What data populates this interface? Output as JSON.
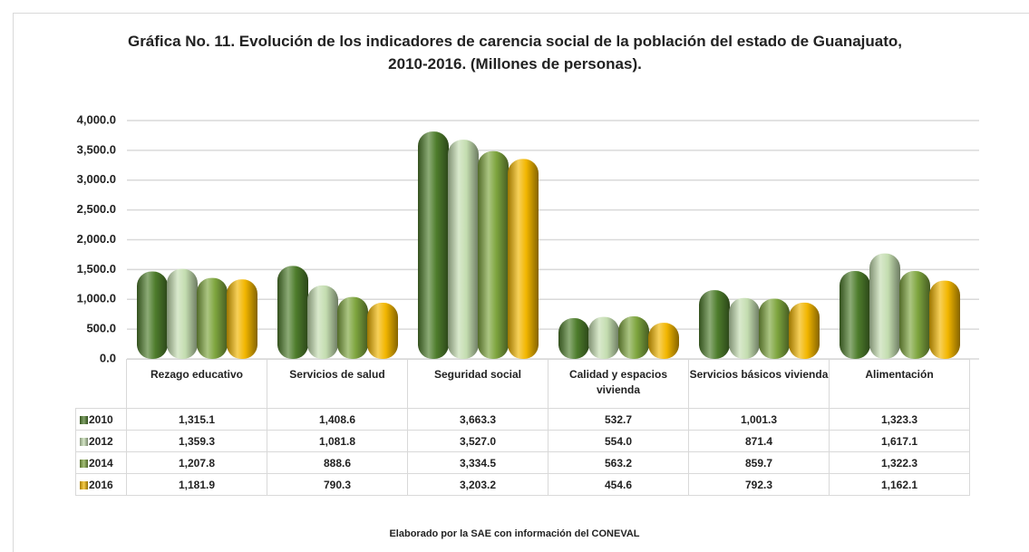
{
  "chart_data": {
    "type": "bar",
    "title": "Gráfica No. 11. Evolución de los indicadores de carencia social de la población del estado de Guanajuato, 2010-2016. (Millones de personas).",
    "source": "Elaborado por la SAE con información del CONEVAL",
    "categories": [
      "Rezago educativo",
      "Servicios de salud",
      "Seguridad social",
      "Calidad y espacios vivienda",
      "Servicios básicos vivienda",
      "Alimentación"
    ],
    "series": [
      {
        "name": "2010",
        "color": "#4e7d2c",
        "values": [
          1315.1,
          1408.6,
          3663.3,
          532.7,
          1001.3,
          1323.3
        ],
        "value_labels": [
          "1,315.1",
          "1,408.6",
          "3,663.3",
          "532.7",
          "1,001.3",
          "1,323.3"
        ]
      },
      {
        "name": "2012",
        "color": "#c4ddb0",
        "values": [
          1359.3,
          1081.8,
          3527.0,
          554.0,
          871.4,
          1617.1
        ],
        "value_labels": [
          "1,359.3",
          "1,081.8",
          "3,527.0",
          "554.0",
          "871.4",
          "1,617.1"
        ]
      },
      {
        "name": "2014",
        "color": "#7ea53e",
        "values": [
          1207.8,
          888.6,
          3334.5,
          563.2,
          859.7,
          1322.3
        ],
        "value_labels": [
          "1,207.8",
          "888.6",
          "3,334.5",
          "563.2",
          "859.7",
          "1,322.3"
        ]
      },
      {
        "name": "2016",
        "color": "#f2b600",
        "values": [
          1181.9,
          790.3,
          3203.2,
          454.6,
          792.3,
          1162.1
        ],
        "value_labels": [
          "1,181.9",
          "790.3",
          "3,203.2",
          "454.6",
          "792.3",
          "1,162.1"
        ]
      }
    ],
    "ylim": [
      0,
      4000
    ],
    "yticks": [
      {
        "value": 0,
        "label": "0.0"
      },
      {
        "value": 500,
        "label": "500.0"
      },
      {
        "value": 1000,
        "label": "1,000.0"
      },
      {
        "value": 1500,
        "label": "1,500.0"
      },
      {
        "value": 2000,
        "label": "2,000.0"
      },
      {
        "value": 2500,
        "label": "2,500.0"
      },
      {
        "value": 3000,
        "label": "3,000.0"
      },
      {
        "value": 3500,
        "label": "3,500.0"
      },
      {
        "value": 4000,
        "label": "4,000.0"
      }
    ],
    "grid": true
  }
}
